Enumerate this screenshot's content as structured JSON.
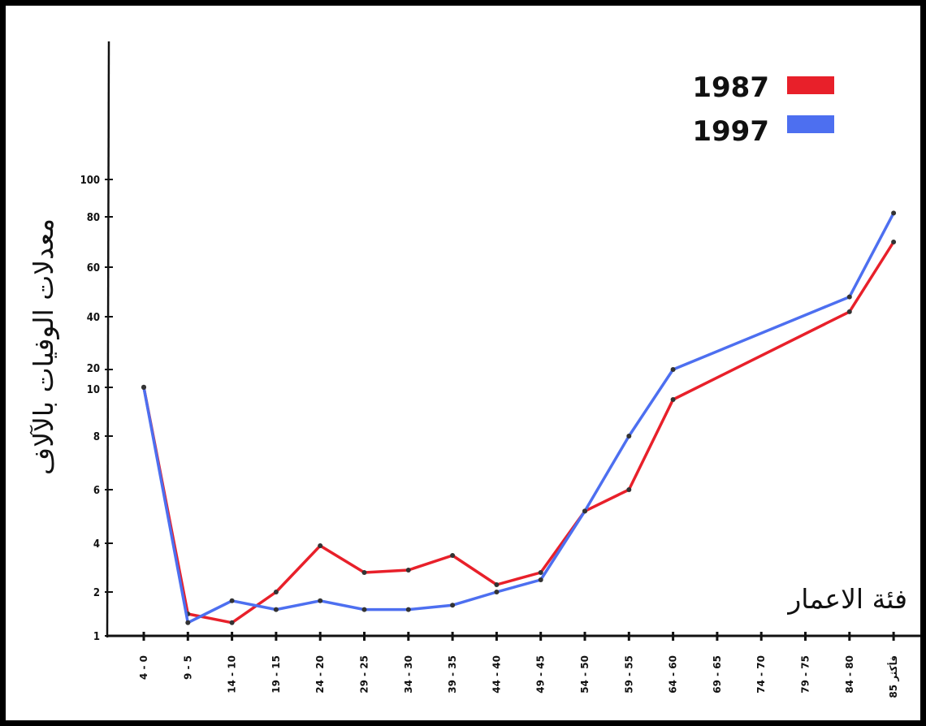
{
  "chart_data": {
    "type": "line",
    "title": "",
    "xlabel": "فئة الاعمار",
    "ylabel": "معدلات الوفيات بالآلاف",
    "categories": [
      "4 - 0",
      "9 - 5",
      "14 - 10",
      "19 - 15",
      "24 - 20",
      "29 - 25",
      "34 - 30",
      "39 - 35",
      "44 - 40",
      "49 - 45",
      "54 - 50",
      "59 - 55",
      "64 - 60",
      "69 - 65",
      "74 - 70",
      "79 - 75",
      "84 - 80",
      "85 فأكثر"
    ],
    "y_ticks": [
      "1",
      "2",
      "4",
      "6",
      "8",
      "10",
      "20",
      "40",
      "60",
      "80",
      "100"
    ],
    "y_scale": "broken: linear 1–10, then linear 20–100",
    "series": [
      {
        "name": "1987",
        "color": "#e8202a",
        "points": [
          [
            0,
            10.1
          ],
          [
            1,
            1.5
          ],
          [
            2,
            1.3
          ],
          [
            3,
            2.0
          ],
          [
            4,
            3.9
          ],
          [
            5,
            2.8
          ],
          [
            6,
            2.9
          ],
          [
            7,
            3.5
          ],
          [
            8,
            2.3
          ],
          [
            9,
            2.8
          ],
          [
            10,
            5.2
          ],
          [
            11,
            6.0
          ],
          [
            12,
            9.5
          ],
          [
            16,
            42
          ],
          [
            17,
            70
          ]
        ]
      },
      {
        "name": "1997",
        "color": "#4d6ff0",
        "points": [
          [
            0,
            10.0
          ],
          [
            1,
            1.3
          ],
          [
            2,
            1.8
          ],
          [
            3,
            1.6
          ],
          [
            4,
            1.8
          ],
          [
            5,
            1.6
          ],
          [
            6,
            1.6
          ],
          [
            7,
            1.7
          ],
          [
            8,
            2.0
          ],
          [
            9,
            2.5
          ],
          [
            10,
            5.2
          ],
          [
            11,
            8.0
          ],
          [
            12,
            20
          ],
          [
            16,
            48
          ],
          [
            17,
            82
          ]
        ]
      }
    ],
    "legend": {
      "position": "top-right",
      "entries": [
        "1987",
        "1997"
      ]
    },
    "grid": false
  }
}
